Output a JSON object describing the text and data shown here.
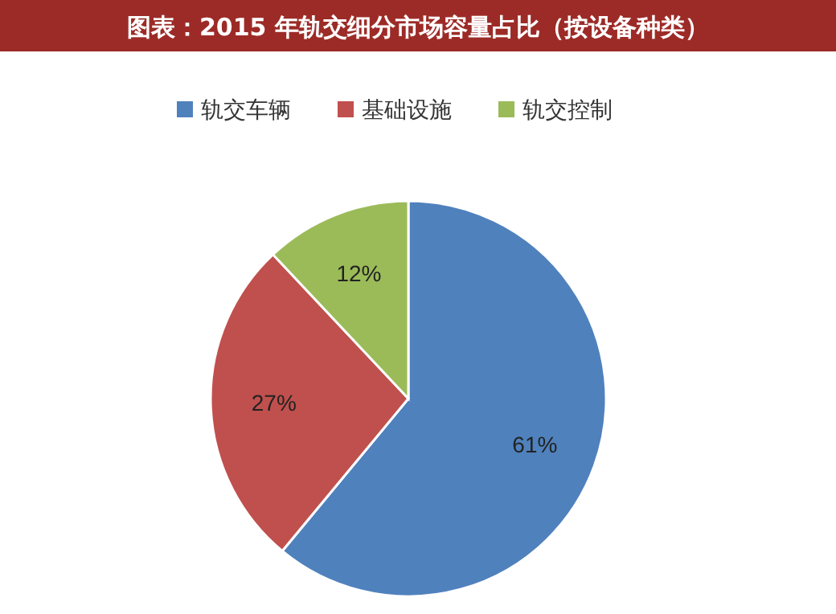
{
  "chart_data": {
    "type": "pie",
    "title": "图表：2015 年轨交细分市场容量占比（按设备种类）",
    "categories": [
      "轨交车辆",
      "基础设施",
      "轨交控制"
    ],
    "values": [
      61,
      27,
      12
    ],
    "colors": [
      "#4f81bd",
      "#c0504d",
      "#9bbb59"
    ],
    "value_labels": [
      "61%",
      "27%",
      "12%"
    ],
    "legend": "top"
  }
}
